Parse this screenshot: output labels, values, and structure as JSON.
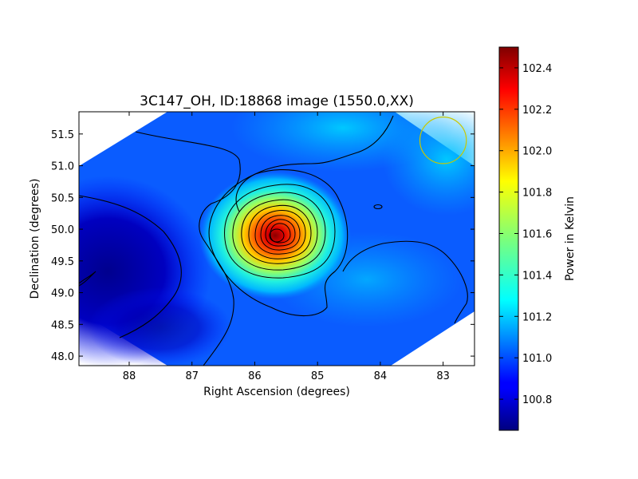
{
  "chart_data": {
    "type": "heatmap",
    "title": "3C147_OH, ID:18868 image (1550.0,XX)",
    "xlabel": "Right Ascension (degrees)",
    "ylabel": "Declination (degrees)",
    "xlim": [
      88.8,
      82.5
    ],
    "ylim": [
      47.85,
      51.85
    ],
    "x_ticks": [
      "88",
      "87",
      "86",
      "85",
      "84",
      "83"
    ],
    "x_tick_values": [
      88,
      87,
      86,
      85,
      84,
      83
    ],
    "y_ticks": [
      "48.0",
      "48.5",
      "49.0",
      "49.5",
      "50.0",
      "50.5",
      "51.0",
      "51.5"
    ],
    "y_tick_values": [
      48.0,
      48.5,
      49.0,
      49.5,
      50.0,
      50.5,
      51.0,
      51.5
    ],
    "colorbar": {
      "label": "Power in Kelvin",
      "range": [
        100.65,
        102.5
      ],
      "ticks": [
        "100.8",
        "101.0",
        "101.2",
        "101.4",
        "101.6",
        "101.8",
        "102.0",
        "102.2",
        "102.4"
      ],
      "tick_values": [
        100.8,
        101.0,
        101.2,
        101.4,
        101.6,
        101.8,
        102.0,
        102.2,
        102.4
      ],
      "colormap": "jet"
    },
    "peak": {
      "ra": 85.65,
      "dec": 49.9,
      "value": 102.5
    },
    "beam_circle": {
      "ra": 83.0,
      "dec": 51.4,
      "radius_deg": 0.37,
      "color": "#c8c800"
    },
    "grid": false,
    "legend": "none"
  }
}
